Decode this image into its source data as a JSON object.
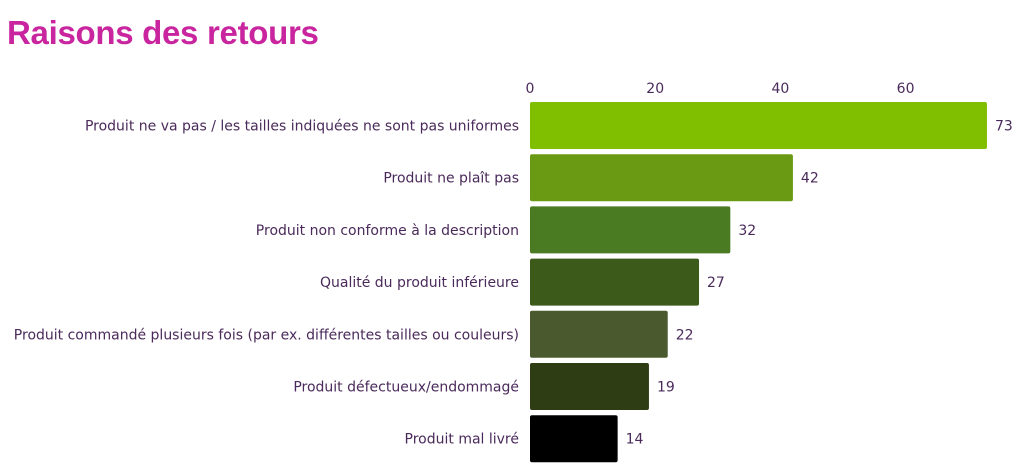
{
  "chart_data": {
    "type": "bar",
    "orientation": "horizontal",
    "title": "Raisons des retours",
    "categories": [
      "Produit ne va pas / les tailles indiquées ne sont pas uniformes",
      "Produit ne plaît pas",
      "Produit non conforme à la description",
      "Qualité du produit inférieure",
      "Produit commandé plusieurs fois (par ex. différentes tailles ou couleurs)",
      "Produit défectueux/endommagé",
      "Produit mal livré"
    ],
    "values": [
      73,
      42,
      32,
      27,
      22,
      19,
      14
    ],
    "value_labels": [
      "73",
      "42",
      "32",
      "27",
      "22",
      "19",
      "14"
    ],
    "colors": [
      "#7fbf00",
      "#6a9a14",
      "#4a7a21",
      "#3c5a1a",
      "#4a5a2e",
      "#2e3d14",
      "#000000"
    ],
    "xticks": [
      0,
      20,
      40,
      60
    ],
    "xtick_labels": [
      "0",
      "20",
      "40",
      "60"
    ],
    "xlim": [
      0,
      73
    ],
    "xaxis_position": "top",
    "grid": false,
    "legend": "none",
    "title_color": "#c8259e",
    "label_color": "#4a2a5a"
  }
}
